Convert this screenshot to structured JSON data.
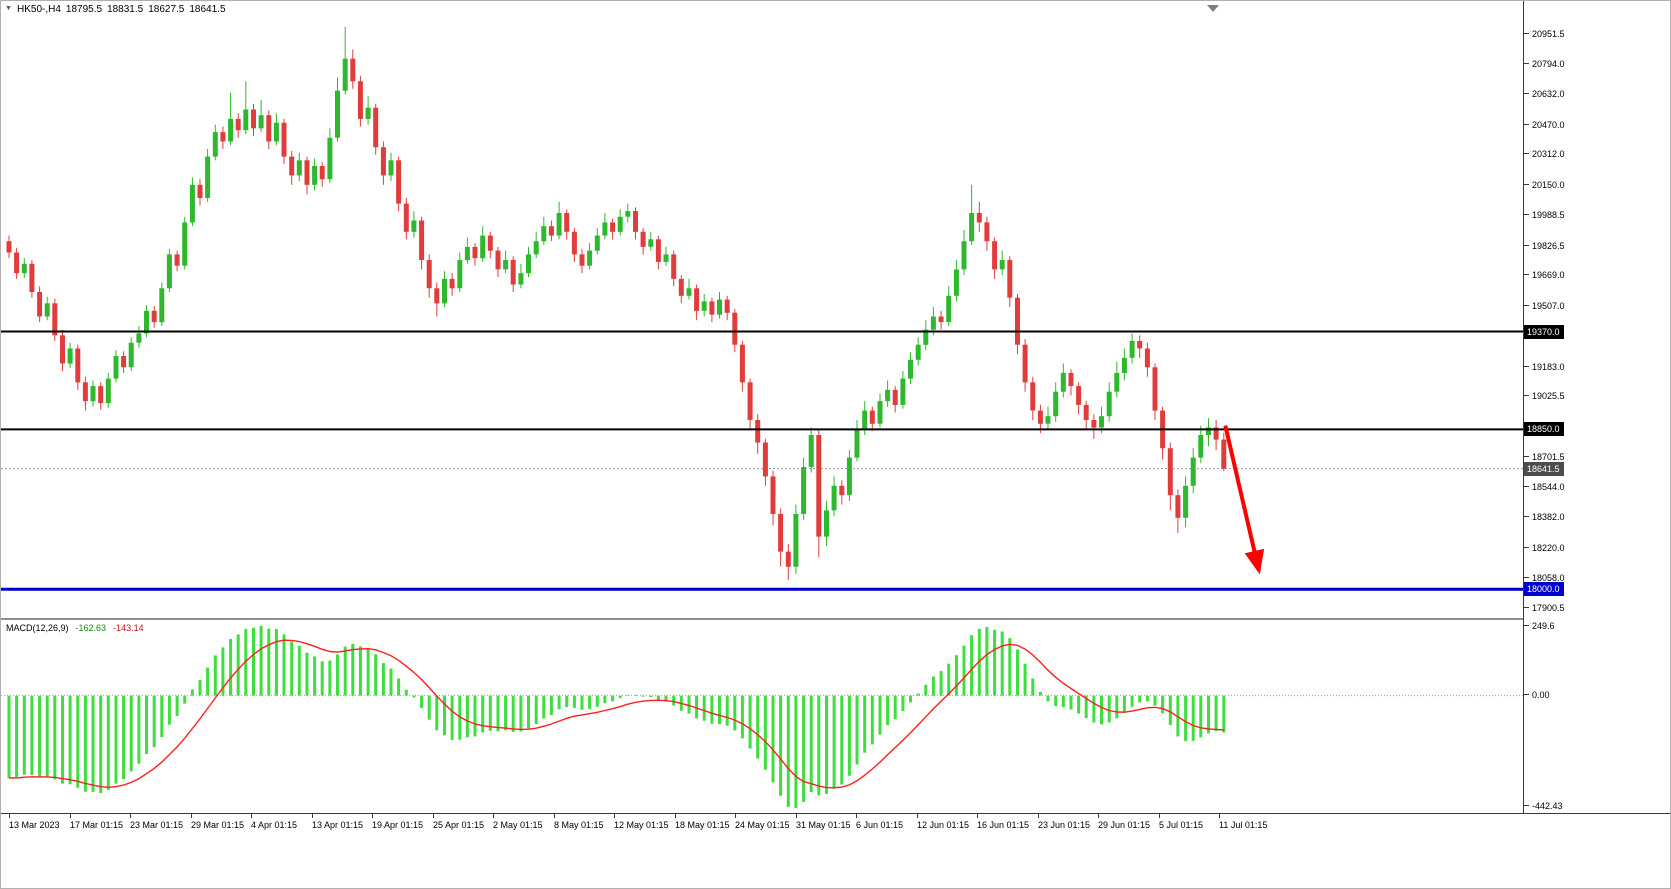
{
  "header": {
    "symbol_period": "HK50-,H4",
    "open": "18795.5",
    "high": "18831.5",
    "low": "18627.5",
    "close": "18641.5"
  },
  "colors": {
    "background": "#ffffff",
    "up": "#2eb82e",
    "down": "#e03c3c",
    "macd_histogram": "#3fdd3f",
    "macd_signal": "#ff1f1f",
    "level_black": "#000000",
    "level_blue": "#0000cc",
    "current_price_badge": "#4d4d4d",
    "arrow": "#ff0000",
    "text": "#000000"
  },
  "chart_data": {
    "type": "candlestick",
    "symbol": "HK50-",
    "timeframe": "H4",
    "price_axis": {
      "max": 20951.5,
      "min": 17900.5,
      "labels": [
        "20951.5",
        "20794.0",
        "20632.0",
        "20470.0",
        "20312.0",
        "20150.0",
        "19988.5",
        "19826.5",
        "19669.0",
        "19507.0",
        "19345.0",
        "19183.0",
        "19025.5",
        "18863.5",
        "18701.5",
        "18544.0",
        "18382.0",
        "18220.0",
        "18058.0",
        "17900.5"
      ]
    },
    "time_axis": {
      "labels": [
        "13 Mar 2023",
        "17 Mar 01:15",
        "23 Mar 01:15",
        "29 Mar 01:15",
        "4 Apr 01:15",
        "13 Apr 01:15",
        "19 Apr 01:15",
        "25 Apr 01:15",
        "2 May 01:15",
        "8 May 01:15",
        "12 May 01:15",
        "18 May 01:15",
        "24 May 01:15",
        "31 May 01:15",
        "6 Jun 01:15",
        "12 Jun 01:15",
        "16 Jun 01:15",
        "23 Jun 01:15",
        "29 Jun 01:15",
        "5 Jul 01:15",
        "11 Jul 01:15"
      ]
    },
    "candles": [
      [
        19850,
        19880,
        19760,
        19790
      ],
      [
        19790,
        19815,
        19650,
        19680
      ],
      [
        19680,
        19760,
        19655,
        19730
      ],
      [
        19730,
        19750,
        19550,
        19580
      ],
      [
        19580,
        19610,
        19420,
        19450
      ],
      [
        19450,
        19555,
        19430,
        19520
      ],
      [
        19520,
        19545,
        19320,
        19350
      ],
      [
        19350,
        19380,
        19160,
        19200
      ],
      [
        19200,
        19310,
        19175,
        19280
      ],
      [
        19280,
        19300,
        19060,
        19100
      ],
      [
        19100,
        19130,
        18950,
        19000
      ],
      [
        19000,
        19110,
        18970,
        19080
      ],
      [
        19080,
        19100,
        18955,
        18990
      ],
      [
        18990,
        19150,
        18965,
        19120
      ],
      [
        19120,
        19270,
        19100,
        19240
      ],
      [
        19240,
        19265,
        19150,
        19180
      ],
      [
        19180,
        19340,
        19160,
        19310
      ],
      [
        19310,
        19400,
        19285,
        19360
      ],
      [
        19360,
        19510,
        19340,
        19480
      ],
      [
        19480,
        19505,
        19390,
        19420
      ],
      [
        19420,
        19630,
        19400,
        19600
      ],
      [
        19600,
        19810,
        19580,
        19780
      ],
      [
        19780,
        19800,
        19690,
        19720
      ],
      [
        19720,
        19980,
        19700,
        19950
      ],
      [
        19950,
        20190,
        19930,
        20150
      ],
      [
        20150,
        20180,
        20040,
        20080
      ],
      [
        20080,
        20340,
        20060,
        20300
      ],
      [
        20300,
        20470,
        20280,
        20430
      ],
      [
        20430,
        20460,
        20340,
        20380
      ],
      [
        20380,
        20640,
        20360,
        20500
      ],
      [
        20500,
        20530,
        20400,
        20440
      ],
      [
        20440,
        20700,
        20420,
        20550
      ],
      [
        20550,
        20580,
        20410,
        20450
      ],
      [
        20450,
        20600,
        20430,
        20520
      ],
      [
        20520,
        20545,
        20340,
        20380
      ],
      [
        20380,
        20530,
        20360,
        20480
      ],
      [
        20480,
        20500,
        20260,
        20300
      ],
      [
        20300,
        20330,
        20150,
        20200
      ],
      [
        20200,
        20320,
        20170,
        20280
      ],
      [
        20280,
        20300,
        20100,
        20150
      ],
      [
        20150,
        20290,
        20120,
        20250
      ],
      [
        20250,
        20270,
        20140,
        20180
      ],
      [
        20180,
        20450,
        20160,
        20400
      ],
      [
        20400,
        20720,
        20380,
        20650
      ],
      [
        20650,
        20990,
        20630,
        20820
      ],
      [
        20820,
        20870,
        20660,
        20700
      ],
      [
        20700,
        20730,
        20460,
        20500
      ],
      [
        20500,
        20620,
        20470,
        20560
      ],
      [
        20560,
        20580,
        20310,
        20350
      ],
      [
        20350,
        20380,
        20150,
        20200
      ],
      [
        20200,
        20320,
        20170,
        20280
      ],
      [
        20280,
        20300,
        20010,
        20050
      ],
      [
        20050,
        20080,
        19860,
        19900
      ],
      [
        19900,
        20010,
        19870,
        19960
      ],
      [
        19960,
        19980,
        19700,
        19750
      ],
      [
        19750,
        19780,
        19550,
        19600
      ],
      [
        19600,
        19630,
        19450,
        19520
      ],
      [
        19520,
        19690,
        19500,
        19650
      ],
      [
        19650,
        19680,
        19560,
        19600
      ],
      [
        19600,
        19790,
        19580,
        19750
      ],
      [
        19750,
        19870,
        19730,
        19820
      ],
      [
        19820,
        19840,
        19720,
        19760
      ],
      [
        19760,
        19930,
        19740,
        19880
      ],
      [
        19880,
        19900,
        19760,
        19800
      ],
      [
        19800,
        19820,
        19660,
        19700
      ],
      [
        19700,
        19800,
        19680,
        19750
      ],
      [
        19750,
        19770,
        19580,
        19620
      ],
      [
        19620,
        19730,
        19600,
        19680
      ],
      [
        19680,
        19820,
        19660,
        19780
      ],
      [
        19780,
        19900,
        19760,
        19850
      ],
      [
        19850,
        19980,
        19830,
        19930
      ],
      [
        19930,
        19960,
        19850,
        19880
      ],
      [
        19880,
        20060,
        19860,
        20000
      ],
      [
        20000,
        20020,
        19860,
        19900
      ],
      [
        19900,
        19920,
        19740,
        19780
      ],
      [
        19780,
        19810,
        19680,
        19720
      ],
      [
        19720,
        19840,
        19700,
        19800
      ],
      [
        19800,
        19920,
        19780,
        19880
      ],
      [
        19880,
        20000,
        19860,
        19950
      ],
      [
        19950,
        19970,
        19860,
        19900
      ],
      [
        19900,
        20020,
        19880,
        19980
      ],
      [
        19980,
        20050,
        19950,
        20010
      ],
      [
        20010,
        20030,
        19860,
        19900
      ],
      [
        19900,
        19920,
        19780,
        19820
      ],
      [
        19820,
        19900,
        19800,
        19860
      ],
      [
        19860,
        19880,
        19700,
        19740
      ],
      [
        19740,
        19820,
        19720,
        19780
      ],
      [
        19780,
        19800,
        19610,
        19650
      ],
      [
        19650,
        19670,
        19520,
        19560
      ],
      [
        19560,
        19650,
        19540,
        19600
      ],
      [
        19600,
        19620,
        19430,
        19480
      ],
      [
        19480,
        19570,
        19450,
        19530
      ],
      [
        19530,
        19550,
        19420,
        19460
      ],
      [
        19460,
        19580,
        19440,
        19540
      ],
      [
        19540,
        19560,
        19430,
        19470
      ],
      [
        19470,
        19490,
        19260,
        19300
      ],
      [
        19300,
        19320,
        19050,
        19100
      ],
      [
        19100,
        19120,
        18850,
        18900
      ],
      [
        18900,
        18930,
        18720,
        18780
      ],
      [
        18780,
        18800,
        18550,
        18600
      ],
      [
        18600,
        18630,
        18340,
        18400
      ],
      [
        18400,
        18430,
        18120,
        18200
      ],
      [
        18200,
        18240,
        18050,
        18120
      ],
      [
        18120,
        18450,
        18080,
        18400
      ],
      [
        18400,
        18700,
        18370,
        18650
      ],
      [
        18650,
        18860,
        18620,
        18820
      ],
      [
        18820,
        18850,
        18170,
        18280
      ],
      [
        18280,
        18470,
        18230,
        18420
      ],
      [
        18420,
        18600,
        18390,
        18550
      ],
      [
        18550,
        18580,
        18450,
        18500
      ],
      [
        18500,
        18740,
        18470,
        18700
      ],
      [
        18700,
        18900,
        18680,
        18850
      ],
      [
        18850,
        19000,
        18820,
        18950
      ],
      [
        18950,
        18970,
        18840,
        18880
      ],
      [
        18880,
        19040,
        18860,
        19000
      ],
      [
        19000,
        19110,
        18970,
        19060
      ],
      [
        19060,
        19080,
        18940,
        18980
      ],
      [
        18980,
        19160,
        18960,
        19120
      ],
      [
        19120,
        19260,
        19090,
        19220
      ],
      [
        19220,
        19340,
        19190,
        19300
      ],
      [
        19300,
        19430,
        19270,
        19380
      ],
      [
        19380,
        19500,
        19350,
        19450
      ],
      [
        19450,
        19480,
        19380,
        19420
      ],
      [
        19420,
        19610,
        19400,
        19560
      ],
      [
        19560,
        19750,
        19530,
        19700
      ],
      [
        19700,
        19910,
        19670,
        19850
      ],
      [
        19850,
        20150,
        19830,
        20000
      ],
      [
        20000,
        20060,
        19900,
        19950
      ],
      [
        19950,
        19980,
        19800,
        19850
      ],
      [
        19850,
        19870,
        19650,
        19700
      ],
      [
        19700,
        19800,
        19670,
        19750
      ],
      [
        19750,
        19770,
        19500,
        19550
      ],
      [
        19550,
        19570,
        19250,
        19300
      ],
      [
        19300,
        19330,
        19050,
        19100
      ],
      [
        19100,
        19130,
        18900,
        18950
      ],
      [
        18950,
        18980,
        18830,
        18880
      ],
      [
        18880,
        18970,
        18850,
        18920
      ],
      [
        18920,
        19100,
        18890,
        19050
      ],
      [
        19050,
        19200,
        19020,
        19150
      ],
      [
        19150,
        19170,
        19030,
        19080
      ],
      [
        19080,
        19100,
        18930,
        18980
      ],
      [
        18980,
        19000,
        18850,
        18900
      ],
      [
        18900,
        18930,
        18800,
        18860
      ],
      [
        18860,
        18970,
        18830,
        18920
      ],
      [
        18920,
        19100,
        18890,
        19050
      ],
      [
        19050,
        19210,
        19020,
        19150
      ],
      [
        19150,
        19280,
        19110,
        19230
      ],
      [
        19230,
        19360,
        19200,
        19320
      ],
      [
        19320,
        19350,
        19230,
        19280
      ],
      [
        19280,
        19310,
        19130,
        19180
      ],
      [
        19180,
        19200,
        18900,
        18950
      ],
      [
        18950,
        18970,
        18690,
        18750
      ],
      [
        18750,
        18780,
        18420,
        18500
      ],
      [
        18500,
        18530,
        18300,
        18380
      ],
      [
        18380,
        18600,
        18330,
        18550
      ],
      [
        18550,
        18750,
        18510,
        18700
      ],
      [
        18700,
        18870,
        18670,
        18820
      ],
      [
        18820,
        18910,
        18760,
        18860
      ],
      [
        18860,
        18900,
        18740,
        18795.5
      ],
      [
        18795.5,
        18831.5,
        18627.5,
        18641.5
      ]
    ],
    "levels": [
      {
        "price": 19370.0,
        "label": "19370.0",
        "color": "#000000",
        "width": 2
      },
      {
        "price": 18850.0,
        "label": "18850.0",
        "color": "#000000",
        "width": 2
      },
      {
        "price": 18000.0,
        "label": "18000.0",
        "color": "#0000cc",
        "width": 3
      }
    ],
    "current_price": {
      "value": 18641.5,
      "label": "18641.5"
    },
    "arrow": {
      "from_bar": 159.2,
      "from_price": 18870,
      "to_bar": 163.6,
      "to_price": 18100
    },
    "macd": {
      "label": "MACD(12,26,9)",
      "params": [
        12,
        26,
        9
      ],
      "value_main": "-162.63",
      "value_signal": "-143.14",
      "axis_labels": [
        "249.6",
        "0.00",
        "-442.43"
      ],
      "axis_max": 249.6,
      "axis_min": -442.43
    }
  }
}
